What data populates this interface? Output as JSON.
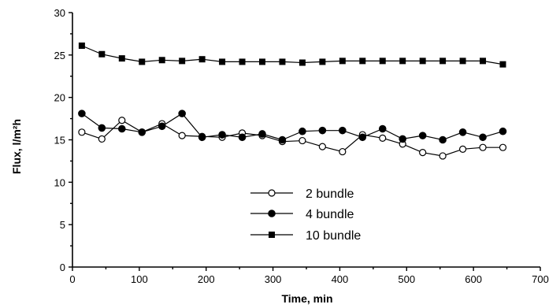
{
  "chart_data": {
    "type": "line",
    "title": "",
    "xlabel": "Time, min",
    "ylabel": "Flux, l/m²h",
    "xlim": [
      0,
      700
    ],
    "ylim": [
      0,
      30
    ],
    "xticks": [
      0,
      100,
      200,
      300,
      400,
      500,
      600,
      700
    ],
    "yticks": [
      0,
      5,
      10,
      15,
      20,
      25,
      30
    ],
    "grid": false,
    "legend_position": "center",
    "series": [
      {
        "name": "2 bundle",
        "marker": "open-circle",
        "x": [
          14,
          44,
          74,
          104,
          134,
          164,
          194,
          224,
          254,
          284,
          314,
          344,
          374,
          404,
          434,
          464,
          494,
          524,
          554,
          584,
          614,
          644
        ],
        "y": [
          15.9,
          15.1,
          17.3,
          15.9,
          16.9,
          15.5,
          15.4,
          15.3,
          15.8,
          15.5,
          14.8,
          14.9,
          14.2,
          13.6,
          15.6,
          15.2,
          14.5,
          13.5,
          13.1,
          13.9,
          14.1,
          14.1
        ]
      },
      {
        "name": "4 bundle",
        "marker": "filled-circle",
        "x": [
          14,
          44,
          74,
          104,
          134,
          164,
          194,
          224,
          254,
          284,
          314,
          344,
          374,
          404,
          434,
          464,
          494,
          524,
          554,
          584,
          614,
          644
        ],
        "y": [
          18.1,
          16.4,
          16.3,
          15.9,
          16.6,
          18.1,
          15.3,
          15.6,
          15.3,
          15.7,
          15.0,
          16.0,
          16.1,
          16.1,
          15.3,
          16.3,
          15.1,
          15.5,
          15.0,
          15.9,
          15.3,
          16.0
        ]
      },
      {
        "name": "10 bundle",
        "marker": "filled-square",
        "x": [
          14,
          44,
          74,
          104,
          134,
          164,
          194,
          224,
          254,
          284,
          314,
          344,
          374,
          404,
          434,
          464,
          494,
          524,
          554,
          584,
          614,
          644
        ],
        "y": [
          26.1,
          25.1,
          24.6,
          24.2,
          24.4,
          24.3,
          24.5,
          24.2,
          24.2,
          24.2,
          24.2,
          24.1,
          24.2,
          24.3,
          24.3,
          24.3,
          24.3,
          24.3,
          24.3,
          24.3,
          24.3,
          23.9
        ]
      }
    ]
  }
}
